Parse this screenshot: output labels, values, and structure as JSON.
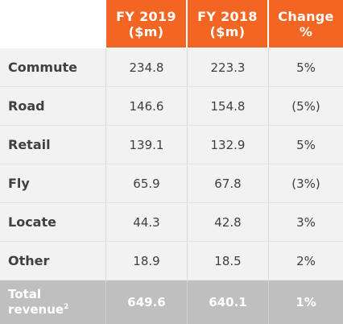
{
  "header": {
    "col1_line1": "FY 2019",
    "col1_line2": "($m)",
    "col2_line1": "FY 2018",
    "col2_line2": "($m)",
    "col3_line1": "Change",
    "col3_line2": "%"
  },
  "rows": [
    {
      "label": "Commute",
      "fy2019": "234.8",
      "fy2018": "223.3",
      "change": "5%"
    },
    {
      "label": "Road",
      "fy2019": "146.6",
      "fy2018": "154.8",
      "change": "(5%)"
    },
    {
      "label": "Retail",
      "fy2019": "139.1",
      "fy2018": "132.9",
      "change": "5%"
    },
    {
      "label": "Fly",
      "fy2019": "65.9",
      "fy2018": "67.8",
      "change": "(3%)"
    },
    {
      "label": "Locate",
      "fy2019": "44.3",
      "fy2018": "42.8",
      "change": "3%"
    },
    {
      "label": "Other",
      "fy2019": "18.9",
      "fy2018": "18.5",
      "change": "2%"
    }
  ],
  "total": {
    "label_line1": "Total",
    "label_line2": "revenue",
    "footnote": "2",
    "fy2019": "649.6",
    "fy2018": "640.1",
    "change": "1%"
  },
  "colors": {
    "header_bg": "#f26522",
    "row_bg": "#f2f2f2",
    "total_bg": "#bfbfbf",
    "text": "#404040"
  }
}
